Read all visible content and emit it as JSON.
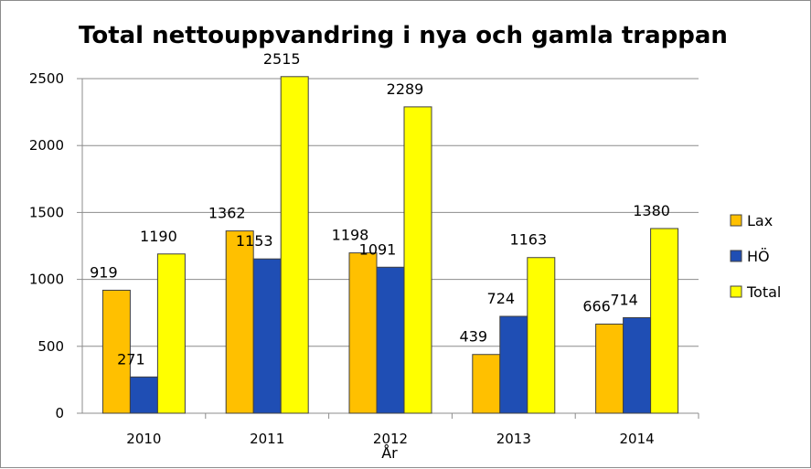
{
  "chart_data": {
    "type": "bar",
    "title": "Total nettouppvandring i nya och gamla trappan",
    "xlabel": "År",
    "ylabel": "",
    "categories": [
      "2010",
      "2011",
      "2012",
      "2013",
      "2014"
    ],
    "series": [
      {
        "name": "Lax",
        "values": [
          919,
          1362,
          1198,
          439,
          666
        ],
        "color": "#FFC000"
      },
      {
        "name": "HÖ",
        "values": [
          271,
          1153,
          1091,
          724,
          714
        ],
        "color": "#1F4EB4"
      },
      {
        "name": "Total",
        "values": [
          1190,
          2515,
          2289,
          1163,
          1380
        ],
        "color": "#FFFF00"
      }
    ],
    "ylim": [
      0,
      2500
    ],
    "yticks": [
      0,
      500,
      1000,
      1500,
      2000,
      2500
    ],
    "grid": true,
    "legend_position": "right",
    "data_labels": true
  }
}
